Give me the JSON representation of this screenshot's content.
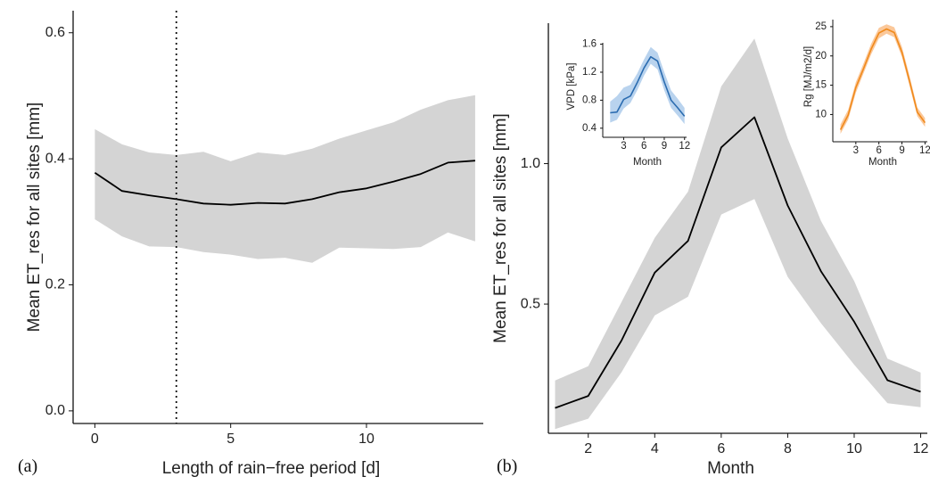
{
  "chart_data": [
    {
      "id": "panel_a",
      "type": "line",
      "panel_label": "(a)",
      "xlabel": "Length of rain−free period [d]",
      "ylabel": "Mean ET_res for all sites [mm]",
      "xlim": [
        -0.8,
        14.3
      ],
      "ylim": [
        -0.02,
        0.635
      ],
      "xticks": [
        0,
        5,
        10
      ],
      "xtick_labels": [
        "0",
        "5",
        "10"
      ],
      "yticks": [
        0.0,
        0.2,
        0.4,
        0.6
      ],
      "ytick_labels": [
        "0.0",
        "0.2",
        "0.4",
        "0.6"
      ],
      "grid": false,
      "vline_x": 3,
      "series": [
        {
          "x": [
            0,
            1,
            2,
            3,
            4,
            5,
            6,
            7,
            8,
            9,
            10,
            11,
            12,
            13,
            14
          ],
          "mean": [
            0.378,
            0.349,
            0.342,
            0.336,
            0.329,
            0.327,
            0.33,
            0.329,
            0.336,
            0.347,
            0.353,
            0.364,
            0.376,
            0.394,
            0.397
          ],
          "lower": [
            0.304,
            0.277,
            0.261,
            0.26,
            0.252,
            0.248,
            0.241,
            0.243,
            0.235,
            0.259,
            0.258,
            0.257,
            0.26,
            0.283,
            0.269
          ],
          "upper": [
            0.447,
            0.423,
            0.41,
            0.406,
            0.411,
            0.396,
            0.41,
            0.406,
            0.416,
            0.432,
            0.445,
            0.458,
            0.478,
            0.493,
            0.501
          ],
          "color": "#000000",
          "band_color": "#d4d4d4"
        }
      ]
    },
    {
      "id": "panel_b",
      "type": "line",
      "panel_label": "(b)",
      "xlabel": "Month",
      "ylabel": "Mean ET_res for all sites [mm]",
      "xlim": [
        0.8,
        12.2
      ],
      "ylim": [
        0.04,
        1.5
      ],
      "xticks": [
        2,
        4,
        6,
        8,
        10,
        12
      ],
      "xtick_labels": [
        "2",
        "4",
        "6",
        "8",
        "10",
        "12"
      ],
      "yticks": [
        0.5,
        1.0
      ],
      "ytick_labels": [
        "0.5",
        "1.0"
      ],
      "grid": false,
      "series": [
        {
          "x": [
            1,
            2,
            3,
            4,
            5,
            6,
            7,
            8,
            9,
            10,
            11,
            12
          ],
          "mean": [
            0.13,
            0.173,
            0.37,
            0.612,
            0.725,
            1.058,
            1.165,
            0.851,
            0.617,
            0.437,
            0.229,
            0.188
          ],
          "lower": [
            0.055,
            0.092,
            0.257,
            0.46,
            0.526,
            0.819,
            0.874,
            0.597,
            0.432,
            0.284,
            0.147,
            0.133
          ],
          "upper": [
            0.228,
            0.279,
            0.507,
            0.736,
            0.9,
            1.275,
            1.445,
            1.09,
            0.796,
            0.582,
            0.306,
            0.256
          ],
          "color": "#000000",
          "band_color": "#d4d4d4"
        }
      ]
    },
    {
      "id": "inset_vpd",
      "type": "line",
      "xlabel": "Month",
      "ylabel": "VPD [kPa]",
      "xlim": [
        0.7,
        12.3
      ],
      "ylim": [
        0.27,
        1.62
      ],
      "xticks": [
        3,
        6,
        9,
        12
      ],
      "xtick_labels": [
        "3",
        "6",
        "9",
        "12"
      ],
      "yticks": [
        0.4,
        0.8,
        1.2,
        1.6
      ],
      "ytick_labels": [
        "0.4",
        "0.8",
        "1.2",
        "1.6"
      ],
      "grid": false,
      "series": [
        {
          "x": [
            1,
            2,
            3,
            4,
            5,
            6,
            7,
            8,
            9,
            10,
            11,
            12
          ],
          "mean": [
            0.62,
            0.63,
            0.81,
            0.86,
            1.05,
            1.26,
            1.42,
            1.36,
            1.06,
            0.8,
            0.69,
            0.57
          ],
          "lower": [
            0.48,
            0.52,
            0.68,
            0.76,
            0.94,
            1.15,
            1.32,
            1.24,
            0.94,
            0.69,
            0.58,
            0.46
          ],
          "upper": [
            0.78,
            0.86,
            0.98,
            1.02,
            1.18,
            1.38,
            1.56,
            1.48,
            1.2,
            0.94,
            0.82,
            0.69
          ],
          "color": "#2b6cb0",
          "band_color": "#b9d3ee"
        }
      ]
    },
    {
      "id": "inset_rg",
      "type": "line",
      "xlabel": "Month",
      "ylabel": "Rg [MJ/m2/d]",
      "xlim": [
        0.7,
        12.3
      ],
      "ylim": [
        5.5,
        26.2
      ],
      "xticks": [
        3,
        6,
        9,
        12
      ],
      "xtick_labels": [
        "3",
        "6",
        "9",
        "12"
      ],
      "yticks": [
        10,
        15,
        20,
        25
      ],
      "ytick_labels": [
        "10",
        "15",
        "20",
        "25"
      ],
      "grid": false,
      "series": [
        {
          "x": [
            1,
            2,
            3,
            4,
            5,
            6,
            7,
            8,
            9,
            10,
            11,
            12
          ],
          "mean": [
            7.4,
            9.9,
            14.6,
            17.8,
            21.2,
            23.9,
            24.6,
            24.0,
            20.6,
            15.6,
            10.4,
            8.6
          ],
          "lower": [
            6.7,
            9.1,
            13.7,
            17.0,
            20.3,
            23.0,
            23.8,
            23.2,
            19.8,
            14.8,
            9.7,
            7.9
          ],
          "upper": [
            8.3,
            10.8,
            15.5,
            18.7,
            22.1,
            24.8,
            25.4,
            24.9,
            21.5,
            16.5,
            11.2,
            9.4
          ],
          "color": "#f08a1c",
          "band_color": "#fbc89a"
        }
      ]
    }
  ]
}
